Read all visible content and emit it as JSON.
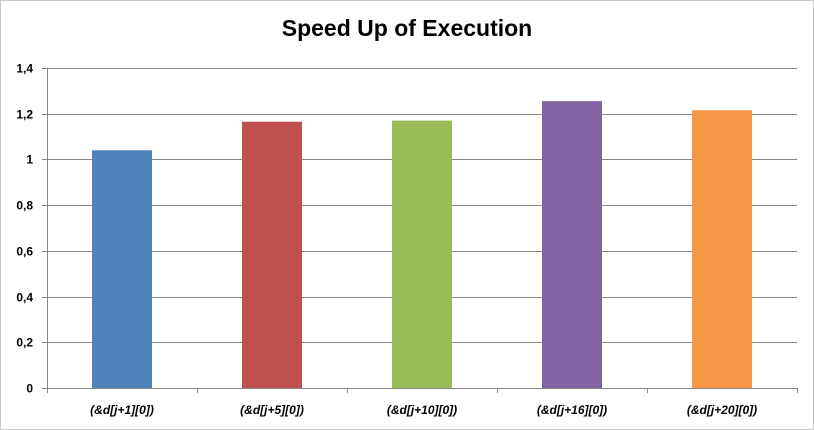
{
  "chart_data": {
    "type": "bar",
    "title": "Speed Up of Execution",
    "xlabel": "",
    "ylabel": "",
    "categories": [
      "(&d[j+1][0])",
      "(&d[j+5][0])",
      "(&d[j+10][0])",
      "(&d[j+16][0])",
      "(&d[j+20][0])"
    ],
    "values": [
      1.04,
      1.165,
      1.17,
      1.255,
      1.215
    ],
    "colors": [
      "#4f81bd",
      "#c0504d",
      "#9bbb59",
      "#8064a2",
      "#f79646"
    ],
    "ylim": [
      0,
      1.4
    ],
    "yticks": [
      "0",
      "0,2",
      "0,4",
      "0,6",
      "0,8",
      "1",
      "1,2",
      "1,4"
    ],
    "grid": true,
    "legend": "none"
  }
}
